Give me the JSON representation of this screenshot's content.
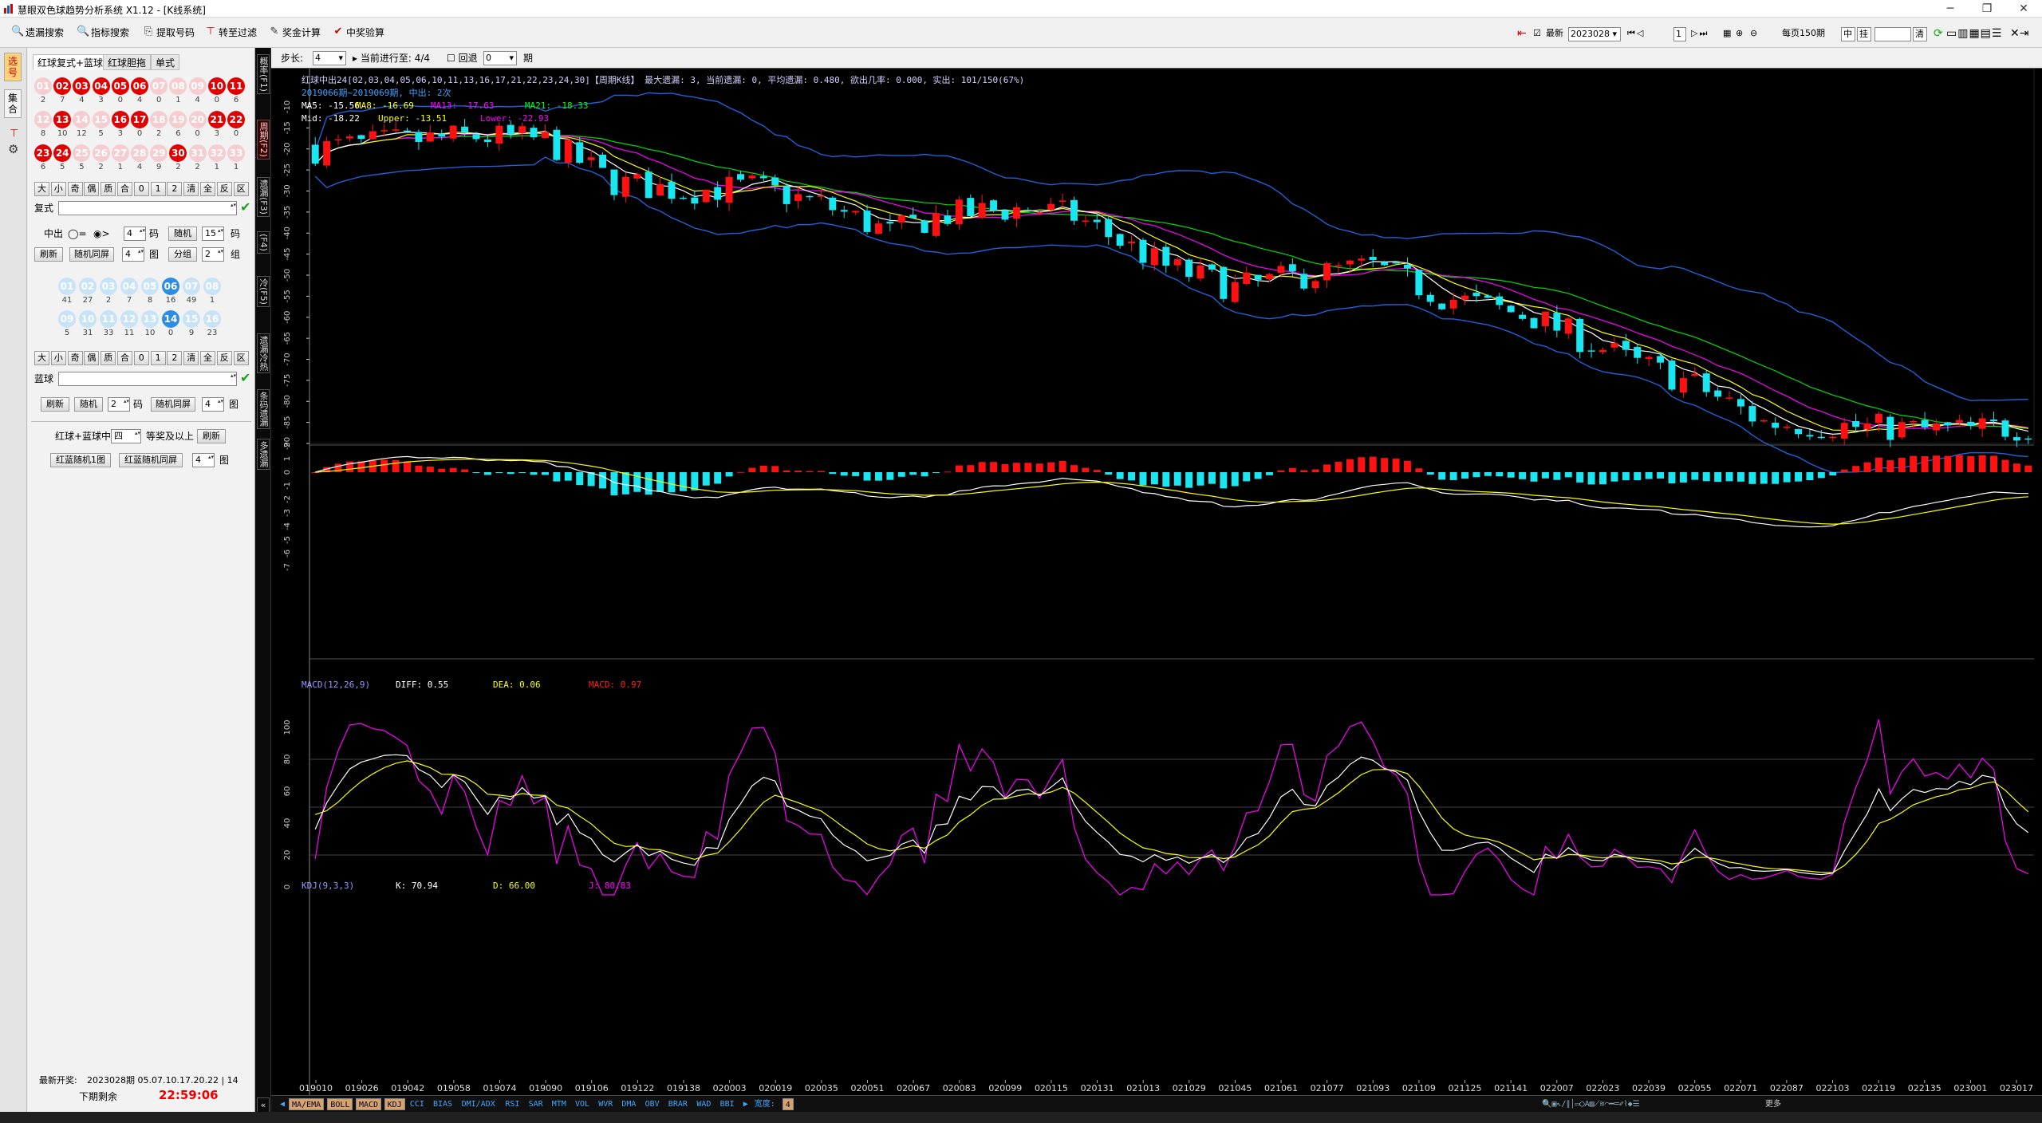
{
  "window": {
    "title": "慧眼双色球趋势分析系统 X1.12 - [K线系统]",
    "minimize": "─",
    "restore": "❐",
    "close": "✕"
  },
  "toolbar": {
    "items": [
      {
        "label": "遗漏搜索",
        "icon": "search-icon"
      },
      {
        "label": "指标搜索",
        "icon": "search-icon"
      },
      {
        "label": "提取号码",
        "icon": "copy-icon"
      },
      {
        "label": "转至过滤",
        "icon": "filter-icon"
      },
      {
        "label": "奖金计算",
        "icon": "edit-icon"
      },
      {
        "label": "中奖验算",
        "icon": "check-circle-icon"
      }
    ],
    "latest_label": "最新",
    "period_value": "2023028",
    "page_value": "1",
    "per_page_label": "每页150期",
    "mid_label": "中",
    "hang_label": "挂",
    "clear_label": "清"
  },
  "left_vtabs": [
    "选号",
    "集合"
  ],
  "panel": {
    "tabs": [
      "红球复式+蓝球",
      "红球胆拖",
      "单式"
    ],
    "red_balls": [
      [
        "01",
        "02",
        "03",
        "04",
        "05",
        "06",
        "07",
        "08",
        "09",
        "10",
        "11"
      ],
      [
        "12",
        "13",
        "14",
        "15",
        "16",
        "17",
        "18",
        "19",
        "20",
        "21",
        "22"
      ],
      [
        "23",
        "24",
        "25",
        "26",
        "27",
        "28",
        "29",
        "30",
        "31",
        "32",
        "33"
      ]
    ],
    "red_counts": [
      [
        "2",
        "7",
        "4",
        "3",
        "0",
        "4",
        "0",
        "1",
        "4",
        "0",
        "6"
      ],
      [
        "8",
        "10",
        "12",
        "5",
        "3",
        "0",
        "2",
        "6",
        "0",
        "3",
        "0"
      ],
      [
        "6",
        "5",
        "5",
        "2",
        "1",
        "4",
        "9",
        "2",
        "2",
        "1",
        "1"
      ]
    ],
    "red_selected": [
      "02",
      "03",
      "04",
      "05",
      "06",
      "10",
      "11",
      "13",
      "16",
      "17",
      "21",
      "22",
      "23",
      "24",
      "30"
    ],
    "filter_row": [
      "大",
      "小",
      "奇",
      "偶",
      "质",
      "合",
      "0",
      "1",
      "2",
      "清",
      "全",
      "反",
      "区"
    ],
    "fushi_label": "复式",
    "zhongchu_label": "中出",
    "op_eq": "=",
    "op_gt": ">",
    "zc_value": "4",
    "ma_label": "码",
    "random_label": "随机",
    "random_value": "15",
    "refresh_label": "刷新",
    "random_tongping": "随机同屏",
    "rt_value": "4",
    "tu_label": "图",
    "fenzu_label": "分组",
    "fz_value": "2",
    "zu_label": "组",
    "blue_balls": [
      [
        "01",
        "02",
        "03",
        "04",
        "05",
        "06",
        "07",
        "08"
      ],
      [
        "09",
        "10",
        "11",
        "12",
        "13",
        "14",
        "15",
        "16"
      ]
    ],
    "blue_counts": [
      [
        "41",
        "27",
        "2",
        "7",
        "8",
        "16",
        "49",
        "1"
      ],
      [
        "5",
        "31",
        "33",
        "11",
        "10",
        "0",
        "9",
        "23"
      ]
    ],
    "blue_selected": [
      "06",
      "14"
    ],
    "lanqiu_label": "蓝球",
    "random_lq_value": "2",
    "rt2_value": "4",
    "hongqiu_lq_label": "红球+蓝球中",
    "level_value": "四",
    "level_suffix": "等奖及以上",
    "hl_random1": "红蓝随机1图",
    "hl_random_tp": "红蓝随机同屏",
    "hl_value": "4",
    "latest_draw_label": "最新开奖:",
    "latest_draw": "2023028期 05.07.10.17.20.22 | 14",
    "next_label": "下期剩余",
    "countdown": "22:59:06"
  },
  "chart": {
    "vtabs": [
      "概率(F1)",
      "周期(F2)",
      "遗漏(F3)",
      "(F4)",
      "冷(F5)",
      "遗漏冷热",
      "条码遗漏",
      "多遗漏"
    ],
    "step_label": "步长:",
    "step_value": "4",
    "progress_label": "当前进行至: 4/4",
    "rollback_label": "回退",
    "rollback_value": "0",
    "period_unit": "期",
    "info_line1": "红球中出24[02,03,04,05,06,10,11,13,16,17,21,22,23,24,30]【周期K线】 最大遗漏: 3, 当前遗漏: 0, 平均遗漏: 0.480, 欲出几率: 0.000, 实出: 101/150(67%)",
    "info_line2": "2019066期~2019069期, 中出: 2次",
    "ma": [
      {
        "label": "MA5: -15.56",
        "color": "#ffffff"
      },
      {
        "label": "MA8: -16.69",
        "color": "#ffff00"
      },
      {
        "label": "MA13: -17.63",
        "color": "#ff00ff"
      },
      {
        "label": "MA21: -18.33",
        "color": "#00ff00"
      }
    ],
    "boll": [
      {
        "label": "Mid: -18.22",
        "color": "#ffffff"
      },
      {
        "label": "Upper: -13.51",
        "color": "#ffff00"
      },
      {
        "label": "Lower: -22.93",
        "color": "#ff00ff"
      }
    ],
    "main_yticks": [
      "-10",
      "-15",
      "-20",
      "-25",
      "-30",
      "-35",
      "-40",
      "-45",
      "-50",
      "-55",
      "-60",
      "-65",
      "-70",
      "-75",
      "-80",
      "-85",
      "-90"
    ],
    "macd_label": "MACD(12,26,9)",
    "macd_diff": "DIFF: 0.55",
    "macd_dea": "DEA: 0.06",
    "macd_val": "MACD: 0.97",
    "macd_yticks": [
      "2",
      "1",
      "0",
      "-1",
      "-2",
      "-3",
      "-4",
      "-5",
      "-6",
      "-7"
    ],
    "kdj_label": "KDJ(9,3,3)",
    "kdj_k": "K: 70.94",
    "kdj_d": "D: 66.00",
    "kdj_j": "J: 80.83",
    "kdj_yticks": [
      "100",
      "80",
      "60",
      "40",
      "20",
      "0"
    ],
    "xticks": [
      "019010",
      "019026",
      "019042",
      "019058",
      "019074",
      "019090",
      "019106",
      "019122",
      "019138",
      "020003",
      "020019",
      "020035",
      "020051",
      "020067",
      "020083",
      "020099",
      "020115",
      "020131",
      "021013",
      "021029",
      "021045",
      "021061",
      "021077",
      "021093",
      "021109",
      "021125",
      "021141",
      "022007",
      "022023",
      "022039",
      "022055",
      "022071",
      "022087",
      "022103",
      "022119",
      "022135",
      "023001",
      "023017"
    ],
    "indicator_tabs": [
      "MA/EMA",
      "BOLL",
      "MACD",
      "KDJ",
      "CCI",
      "BIAS",
      "DMI/ADX",
      "RSI",
      "SAR",
      "MTM",
      "VOL",
      "WVR",
      "DMA",
      "OBV",
      "BRAR",
      "WAD",
      "BBI"
    ],
    "width_label": "宽度:",
    "width_value": "4",
    "more_label": "更多"
  },
  "colors": {
    "bull": "#ff1111",
    "bear": "#19e6f0",
    "bg": "#000000",
    "boll_band": "#2060d8"
  }
}
